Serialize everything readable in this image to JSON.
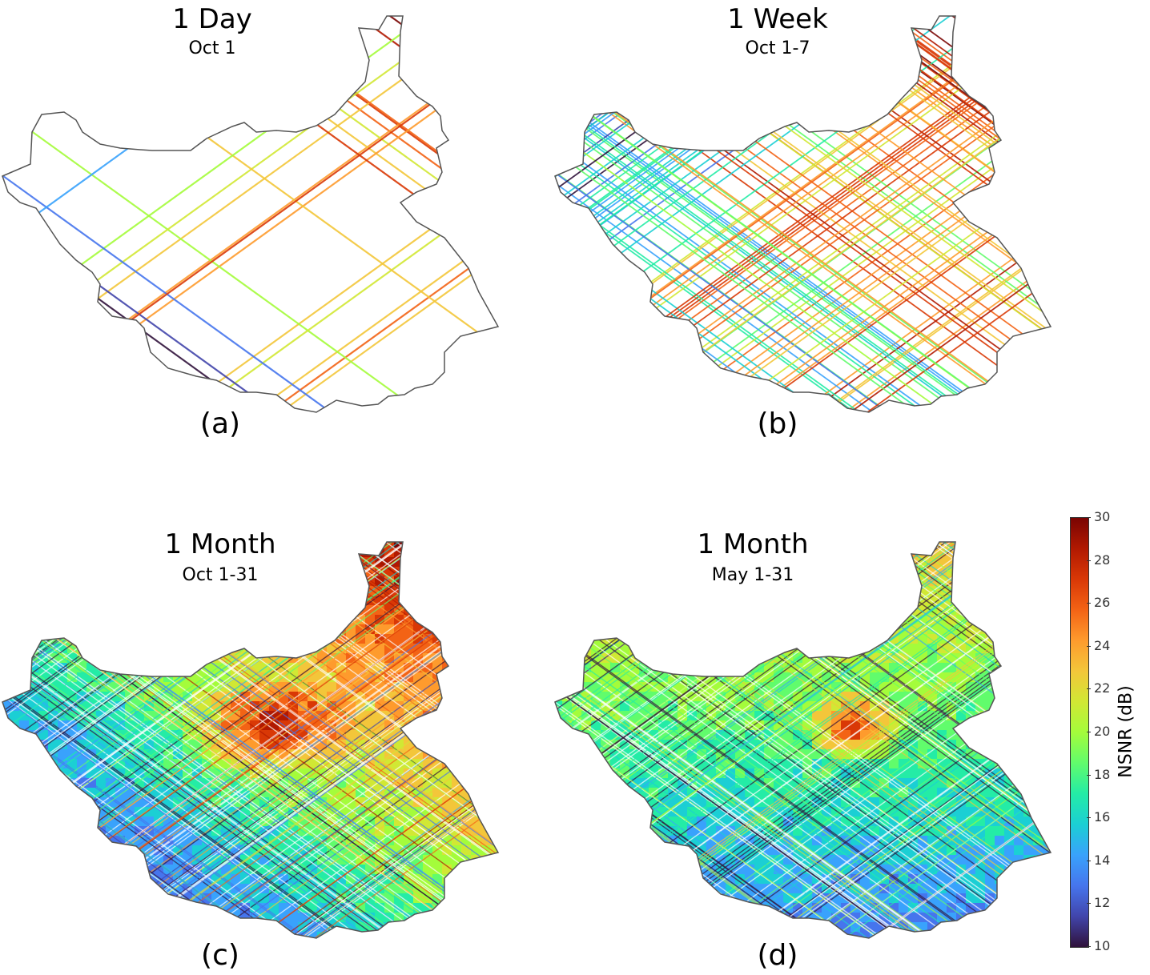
{
  "panels": [
    {
      "id": "a",
      "title": "1 Day",
      "date": "Oct 1",
      "label": "(a)",
      "density": "day"
    },
    {
      "id": "b",
      "title": "1 Week",
      "date": "Oct 1-7",
      "label": "(b)",
      "density": "week"
    },
    {
      "id": "c",
      "title": "1 Month",
      "date": "Oct 1-31",
      "label": "(c)",
      "density": "month"
    },
    {
      "id": "d",
      "title": "1 Month",
      "date": "May 1-31",
      "label": "(d)",
      "density": "month"
    }
  ],
  "colorbar": {
    "label": "NSNR (dB)",
    "min": 10,
    "max": 30,
    "ticks": [
      "30",
      "28",
      "26",
      "24",
      "22",
      "20",
      "18",
      "16",
      "14",
      "12",
      "10"
    ],
    "colormap": [
      "#30123b",
      "#4145ab",
      "#4675ed",
      "#39a2fc",
      "#1bcfd4",
      "#24eca6",
      "#61fc6c",
      "#a4fc3b",
      "#d1e834",
      "#f3c63a",
      "#fe9b2d",
      "#f36315",
      "#d93806",
      "#b11901",
      "#7a0402"
    ]
  }
}
